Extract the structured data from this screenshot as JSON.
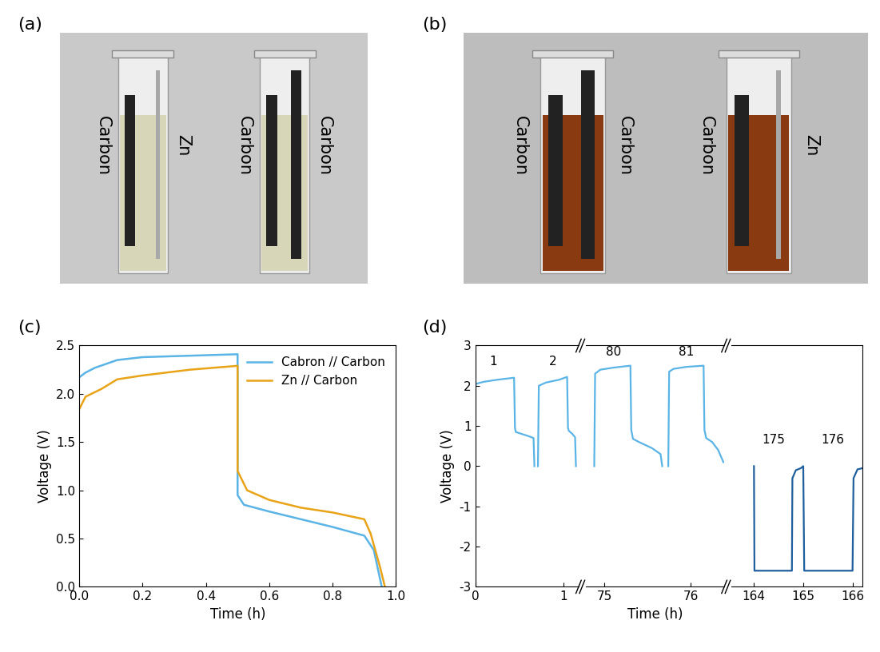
{
  "photos": [
    {
      "label": "(a)",
      "cells": [
        [
          "Carbon",
          "Zn"
        ],
        [
          "Carbon",
          "Carbon"
        ]
      ]
    },
    {
      "label": "(b)",
      "cells": [
        [
          "Carbon",
          "Carbon"
        ],
        [
          "Carbon",
          "Zn"
        ]
      ]
    }
  ],
  "chart_data": [
    {
      "title": "(c)",
      "type": "line",
      "xlabel": "Time (h)",
      "ylabel": "Voltage (V)",
      "xlim": [
        0.0,
        1.0
      ],
      "xticks": [
        0.0,
        0.2,
        0.4,
        0.6,
        0.8,
        1.0
      ],
      "ylim": [
        0.0,
        2.5
      ],
      "yticks": [
        0.0,
        0.5,
        1.0,
        1.5,
        2.0,
        2.5
      ],
      "legend": "upper right",
      "series": [
        {
          "name": "Cabron // Carbon",
          "color": "#5ab4e5",
          "x": [
            0.0,
            0.02,
            0.05,
            0.12,
            0.2,
            0.4,
            0.5,
            0.5,
            0.52,
            0.6,
            0.7,
            0.8,
            0.9,
            0.93,
            0.955
          ],
          "values": [
            2.17,
            2.22,
            2.27,
            2.35,
            2.38,
            2.4,
            2.41,
            0.95,
            0.85,
            0.78,
            0.7,
            0.62,
            0.53,
            0.38,
            0.0
          ]
        },
        {
          "name": "Zn // Carbon",
          "color": "#e8a317",
          "x": [
            0.0,
            0.02,
            0.07,
            0.12,
            0.2,
            0.35,
            0.5,
            0.5,
            0.53,
            0.6,
            0.7,
            0.8,
            0.9,
            0.92,
            0.95,
            0.965
          ],
          "values": [
            1.84,
            1.97,
            2.05,
            2.15,
            2.19,
            2.25,
            2.29,
            1.2,
            1.0,
            0.9,
            0.82,
            0.77,
            0.7,
            0.55,
            0.2,
            0.0
          ]
        }
      ]
    },
    {
      "title": "(d)",
      "type": "line",
      "xlabel": "Time (h)",
      "ylabel": "Voltage (V)",
      "ylim": [
        -3,
        3
      ],
      "yticks": [
        -3,
        -2,
        -1,
        0,
        1,
        2,
        3
      ],
      "segments": [
        {
          "xlim": [
            0.0,
            1.17
          ],
          "xticks": [
            0,
            1
          ],
          "color": "#5ab4e5",
          "x": [
            0.0,
            0.01,
            0.1,
            0.25,
            0.44,
            0.45,
            0.46,
            0.5,
            0.6,
            0.66,
            0.67,
            0.69,
            0.71,
            0.72,
            0.8,
            0.95,
            1.04,
            1.05,
            1.06,
            1.1,
            1.13,
            1.14
          ],
          "values": [
            1.95,
            2.05,
            2.1,
            2.15,
            2.2,
            0.95,
            0.85,
            0.82,
            0.75,
            0.7,
            0.0,
            null,
            0.0,
            2.0,
            2.08,
            2.15,
            2.22,
            0.95,
            0.88,
            0.8,
            0.72,
            0.0
          ],
          "annotations": [
            {
              "text": "1",
              "x": 0.2,
              "y": 2.45
            },
            {
              "text": "2",
              "x": 0.88,
              "y": 2.45
            }
          ]
        },
        {
          "xlim": [
            74.78,
            76.39
          ],
          "xticks": [
            75,
            76
          ],
          "color": "#5ab4e5",
          "x": [
            74.88,
            74.89,
            74.95,
            75.1,
            75.3,
            75.31,
            75.33,
            75.4,
            75.55,
            75.65,
            75.67,
            75.7,
            75.74,
            75.75,
            75.8,
            75.95,
            76.15,
            76.16,
            76.18,
            76.25,
            76.32,
            76.38
          ],
          "values": [
            0.0,
            2.3,
            2.4,
            2.45,
            2.5,
            0.9,
            0.68,
            0.6,
            0.45,
            0.3,
            0.0,
            null,
            0.0,
            2.35,
            2.42,
            2.47,
            2.5,
            0.9,
            0.7,
            0.6,
            0.4,
            0.1
          ],
          "annotations": [
            {
              "text": "80",
              "x": 75.1,
              "y": 2.7
            },
            {
              "text": "81",
              "x": 75.95,
              "y": 2.7
            }
          ]
        },
        {
          "xlim": [
            163.54,
            166.2
          ],
          "xticks": [
            164,
            165,
            166
          ],
          "color": "#1f5f9e",
          "x": [
            164.0,
            164.01,
            164.02,
            164.77,
            164.78,
            164.85,
            164.95,
            165.0,
            165.02,
            165.5,
            166.0,
            166.02,
            166.1,
            166.2
          ],
          "values": [
            0.0,
            -2.6,
            -2.6,
            -2.6,
            -0.3,
            -0.1,
            -0.05,
            0.0,
            -2.6,
            -2.6,
            -2.6,
            -0.3,
            -0.08,
            -0.05
          ],
          "annotations": [
            {
              "text": "175",
              "x": 164.4,
              "y": 0.5
            },
            {
              "text": "176",
              "x": 165.6,
              "y": 0.5
            }
          ]
        }
      ]
    }
  ]
}
